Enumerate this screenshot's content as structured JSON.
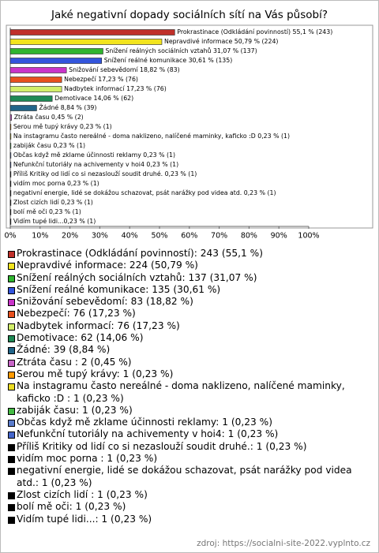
{
  "chart_data": {
    "type": "bar",
    "orientation": "horizontal",
    "title": "Jaké negativní dopady sociálních sítí na Vás působí?",
    "values": [
      55.1,
      50.79,
      31.07,
      30.61,
      18.82,
      17.23,
      17.23,
      14.06,
      8.84,
      0.45,
      0.23,
      0.23,
      0.23,
      0.23,
      0.23,
      0.23,
      0.23,
      0.23,
      0.23,
      0.23,
      0.23
    ],
    "value_labels": [
      "Prokrastinace (Odkládání povinností) 55,1 % (243)",
      "Nepravdivé informace 50,79 % (224)",
      "Snížení reálných sociálních vztahů 31,07 % (137)",
      "Snížení reálné komunikace 30,61 % (135)",
      "Snižování sebevědomí 18,82 % (83)",
      "Nebezpečí 17,23 % (76)",
      "Nadbytek informací 17,23 % (76)",
      "Demotivace 14,06 % (62)",
      "Žádné 8,84 % (39)",
      "Ztráta času  0,45 % (2)",
      "Serou mě tupý krávy 0,23 % (1)",
      "Na instagramu často nereálné - doma naklizeno, nalíčené maminky, kaficko :D  0,23 % (1)",
      "zabiják času 0,23 % (1)",
      "Občas když mě zklame účinnosti reklamy 0,23 % (1)",
      "Nefunkční tutoriály na achivementy v hoi4 0,23 % (1)",
      "Příliš Kritiky od lidí co si nezaslouží soudit druhé. 0,23 % (1)",
      "vidím moc porna  0,23 % (1)",
      "negativní energie, lidé se dokážou schazovat, psát narážky pod videa atd. 0,23 % (1)",
      "Zlost cizích lidí  0,23 % (1)",
      "bolí mě oči 0,23 % (1)",
      "Vidím tupé lidi...0,23 % (1)"
    ],
    "legend": [
      "Prokrastinace (Odkládání povinností): 243 (55,1 %)",
      "Nepravdivé informace: 224 (50,79 %)",
      "Snížení reálných sociálních vztahů: 137 (31,07 %)",
      "Snížení reálné komunikace: 135 (30,61 %)",
      "Snižování sebevědomí: 83 (18,82 %)",
      "Nebezpečí: 76 (17,23 %)",
      "Nadbytek informací: 76 (17,23 %)",
      "Demotivace: 62 (14,06 %)",
      "Žádné: 39 (8,84 %)",
      "Ztráta času : 2 (0,45 %)",
      "Serou mě tupý krávy: 1 (0,23 %)",
      "Na instagramu často nereálné - doma naklizeno, nalíčené maminky, kaficko :D : 1 (0,23 %)",
      "zabiják času: 1 (0,23 %)",
      "Občas když mě zklame účinnosti reklamy: 1 (0,23 %)",
      "Nefunkční tutoriály na achivementy v hoi4: 1 (0,23 %)",
      "Příliš Kritiky od lidí co si nezaslouží soudit druhé.: 1 (0,23 %)",
      "vidím moc porna : 1 (0,23 %)",
      "negativní energie, lidé se dokážou schazovat, psát narážky pod videa atd.: 1 (0,23 %)",
      "Zlost cizích lidí : 1 (0,23 %)",
      "bolí mě oči: 1 (0,23 %)",
      "Vidím tupé lidi...: 1 (0,23 %)"
    ],
    "colors": [
      "#c0302a",
      "#f2e41e",
      "#2fb52f",
      "#3355dd",
      "#c934c9",
      "#e8501e",
      "#d2ee6a",
      "#1f8a55",
      "#21658a",
      "#c866c8",
      "#ff9a00",
      "#ecdc22",
      "#44bb44",
      "#5a7ccc",
      "#4466cc",
      "#000000",
      "#000000",
      "#000000",
      "#000000",
      "#000000",
      "#000000"
    ],
    "xlim": [
      0,
      100
    ],
    "xticks": [
      {
        "value": 0,
        "label": "0%"
      },
      {
        "value": 10,
        "label": "10%"
      },
      {
        "value": 20,
        "label": "20%"
      },
      {
        "value": 30,
        "label": "30%"
      },
      {
        "value": 40,
        "label": "40%"
      },
      {
        "value": 50,
        "label": "50%"
      },
      {
        "value": 60,
        "label": "60%"
      },
      {
        "value": 70,
        "label": "70%"
      },
      {
        "value": 80,
        "label": "80%"
      },
      {
        "value": 90,
        "label": "90%"
      },
      {
        "value": 100,
        "label": "100%"
      }
    ],
    "source": "zdroj: https://socialni-site-2022.vyplnto.cz"
  }
}
